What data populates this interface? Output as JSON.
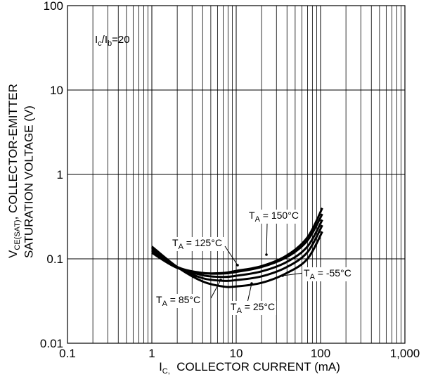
{
  "chart_data": {
    "type": "line",
    "scale": {
      "x": "log",
      "y": "log"
    },
    "xlim": [
      0.1,
      1000
    ],
    "ylim": [
      0.01,
      100
    ],
    "x_ticks": [
      "0.1",
      "1",
      "10",
      "100",
      "1,000"
    ],
    "y_ticks": [
      "0.01",
      "0.1",
      "1",
      "10",
      "100"
    ],
    "xlabel": {
      "symbol": "I",
      "sub": "C,",
      "text": "  COLLECTOR CURRENT (mA)"
    },
    "ylabel": {
      "line1_symbol": "V",
      "line1_sub": "CE(SAT)",
      "line1_text": ", COLLECTOR-EMITTER",
      "line2": "SATURATION VOLTAGE (V)"
    },
    "annotation": {
      "i1": "I",
      "s1": "c",
      "slash": "/I",
      "s2": "b",
      "rest": "=20"
    },
    "grid": true,
    "line_color": "#000000",
    "series": [
      {
        "name": "T_A = 150°C",
        "label": {
          "t": "T",
          "s": "A",
          "v": " = 150°C"
        },
        "points": [
          [
            1,
            0.118
          ],
          [
            2,
            0.078
          ],
          [
            4,
            0.068
          ],
          [
            7,
            0.068
          ],
          [
            10,
            0.072
          ],
          [
            20,
            0.082
          ],
          [
            40,
            0.11
          ],
          [
            70,
            0.18
          ],
          [
            105,
            0.4
          ]
        ]
      },
      {
        "name": "T_A = 125°C",
        "label": {
          "t": "T",
          "s": "A",
          "v": " = 125°C"
        },
        "points": [
          [
            1,
            0.125
          ],
          [
            2,
            0.08
          ],
          [
            4,
            0.068
          ],
          [
            7,
            0.067
          ],
          [
            10,
            0.07
          ],
          [
            20,
            0.08
          ],
          [
            40,
            0.105
          ],
          [
            70,
            0.165
          ],
          [
            105,
            0.34
          ]
        ]
      },
      {
        "name": "T_A = 85°C",
        "label": {
          "t": "T",
          "s": "A",
          "v": " = 85°C"
        },
        "points": [
          [
            1,
            0.13
          ],
          [
            2,
            0.08
          ],
          [
            4,
            0.064
          ],
          [
            7,
            0.061
          ],
          [
            10,
            0.063
          ],
          [
            20,
            0.071
          ],
          [
            40,
            0.092
          ],
          [
            70,
            0.14
          ],
          [
            105,
            0.29
          ]
        ]
      },
      {
        "name": "T_A = 25°C",
        "label": {
          "t": "T",
          "s": "A",
          "v": " = 25°C"
        },
        "points": [
          [
            1,
            0.135
          ],
          [
            2,
            0.08
          ],
          [
            4,
            0.059
          ],
          [
            7,
            0.055
          ],
          [
            10,
            0.056
          ],
          [
            20,
            0.062
          ],
          [
            40,
            0.08
          ],
          [
            70,
            0.12
          ],
          [
            105,
            0.25
          ]
        ]
      },
      {
        "name": "T_A = -55°C",
        "label": {
          "t": "T",
          "s": "A",
          "v": " = -55°C"
        },
        "points": [
          [
            1,
            0.14
          ],
          [
            2,
            0.08
          ],
          [
            4,
            0.054
          ],
          [
            7,
            0.047
          ],
          [
            10,
            0.047
          ],
          [
            20,
            0.052
          ],
          [
            40,
            0.068
          ],
          [
            70,
            0.1
          ],
          [
            105,
            0.21
          ]
        ]
      }
    ]
  }
}
